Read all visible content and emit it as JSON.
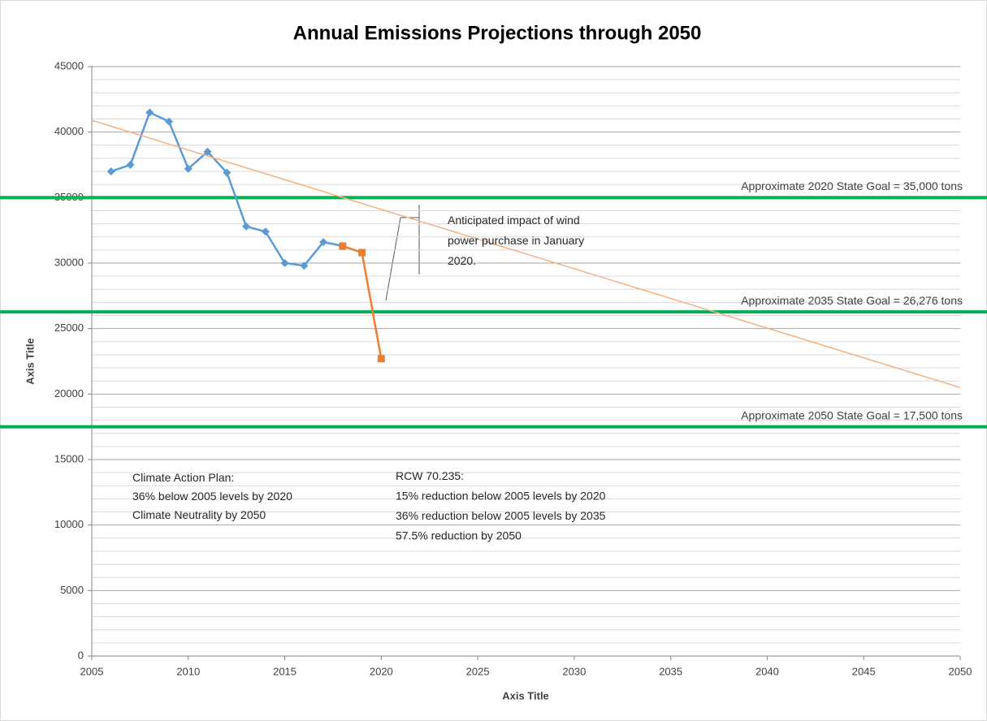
{
  "chart_data": {
    "type": "line",
    "title": "Annual Emissions Projections through 2050",
    "x_label": "Axis Title",
    "y_label": "Axis Title",
    "xlim": [
      2005,
      2050
    ],
    "xticks": [
      2005,
      2010,
      2015,
      2020,
      2025,
      2030,
      2035,
      2040,
      2045,
      2050
    ],
    "ylim": [
      0,
      45000
    ],
    "yticks": [
      0,
      5000,
      10000,
      15000,
      20000,
      25000,
      30000,
      35000,
      40000,
      45000
    ],
    "yminor_ticks": [
      1000,
      2000,
      3000,
      4000,
      6000,
      7000,
      8000,
      9000,
      11000,
      12000,
      13000,
      14000,
      16000,
      17000,
      18000,
      19000,
      21000,
      22000,
      23000,
      24000,
      26000,
      27000,
      28000,
      29000,
      31000,
      32000,
      33000,
      34000,
      36000,
      37000,
      38000,
      39000,
      41000,
      42000,
      43000,
      44000
    ],
    "grid": true,
    "series": [
      {
        "color": "#5b9bd5",
        "marker": "diamond",
        "x": [
          2006,
          2007,
          2008,
          2009,
          2010,
          2011,
          2012,
          2013,
          2014,
          2015,
          2016,
          2017,
          2018
        ],
        "values": [
          37000,
          37500,
          41500,
          40800,
          37200,
          38500,
          36900,
          32800,
          32400,
          30000,
          29800,
          31600,
          31300
        ]
      },
      {
        "color": "#ed7d31",
        "marker": "square",
        "x": [
          2018,
          2019,
          2020
        ],
        "values": [
          31300,
          30800,
          22700
        ]
      },
      {
        "color": "#f4b183",
        "marker": "none",
        "x": [
          2005,
          2050
        ],
        "values": [
          40900,
          20500
        ]
      }
    ],
    "reference_lines": [
      {
        "value": 35000,
        "label": "Approximate 2020 State Goal = 35,000 tons",
        "color": "#00b050"
      },
      {
        "value": 26276,
        "label": "Approximate 2035 State Goal = 26,276 tons",
        "color": "#00b050"
      },
      {
        "value": 17500,
        "label": "Approximate 2050 State Goal = 17,500 tons",
        "color": "#00b050"
      }
    ],
    "annotations": [
      {
        "lines": [
          "Anticipated impact of wind",
          "power purchase in January",
          "2020."
        ]
      },
      {
        "lines": [
          "Climate Action Plan:",
          "36% below 2005 levels by 2020",
          "Climate Neutrality by 2050"
        ]
      },
      {
        "lines": [
          "RCW 70.235:",
          "15% reduction below 2005 levels by 2020",
          "36% reduction below 2005 levels by 2035",
          "57.5% reduction by 2050"
        ]
      }
    ]
  }
}
